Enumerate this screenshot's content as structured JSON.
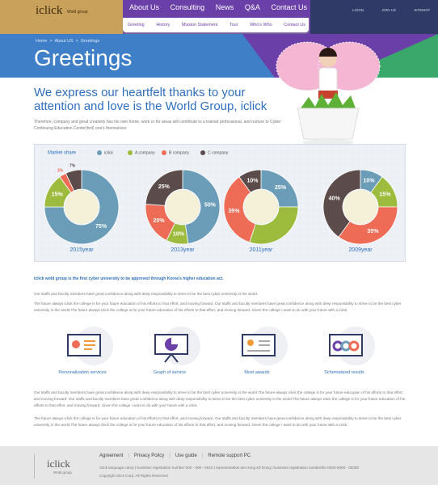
{
  "header": {
    "logo": "iclick",
    "logo_sub": "Wold group",
    "nav": [
      "About Us",
      "Consulting",
      "News",
      "Q&A",
      "Contact Us"
    ],
    "subnav": [
      "Greeting",
      "History",
      "Mission Statement",
      "Tour",
      "Who's Who",
      "Contact Us"
    ],
    "utility": [
      "LOGIN",
      "JOIN US",
      "SITEMAP"
    ]
  },
  "hero": {
    "breadcrumb": [
      "Home",
      "About US",
      "Greetings"
    ],
    "title": "Greetings"
  },
  "intro": {
    "heading": "We express our heartfelt thanks to your attention and love is the World Group, iclick",
    "text": "Therefore, company and great creativity has his own home, work or for areas will contribute to a trained professional, and nurture to Cyber Continuing Education Center(hrd) one's themselves"
  },
  "chart_data": {
    "type": "donut",
    "title": "Market share",
    "categories": [
      "2015year",
      "2013year",
      "2011year",
      "2009year"
    ],
    "series": [
      {
        "name": "iclick",
        "color": "#6c9db8",
        "values": [
          75,
          50,
          25,
          10
        ],
        "value_labels": [
          "75%",
          "50%",
          "25%",
          "10%"
        ]
      },
      {
        "name": "A company",
        "color": "#9dbb3c",
        "values": [
          15,
          10,
          30,
          15
        ],
        "value_labels": [
          "15%",
          "10%",
          null,
          "15%"
        ]
      },
      {
        "name": "B company",
        "color": "#ee6b56",
        "values": [
          3,
          20,
          35,
          35
        ],
        "value_labels": [
          "3%",
          "20%",
          "35%",
          "35%"
        ]
      },
      {
        "name": "C company",
        "color": "#5b4b4b",
        "values": [
          7,
          25,
          10,
          40
        ],
        "value_labels": [
          "7%",
          "25%",
          "10%",
          "40%"
        ]
      }
    ]
  },
  "body": {
    "highlight": "iclick wold group is the first cyber university to be approved through Korea's higher education act.",
    "paragraphs": [
      "Our staffs and faculty members have great confidence along with deep responsibility to strive to be the best cyber university in the world.",
      "The future always iclick the college is for your future education of his efforts to that effort, and moving forward. Our staffs and faculty members have great confidence along with deep responsibility to strive to be the best cyber university in the world.The future always iclick the college is for your future education of his efforts to that effort, and moving forward. Given the college I want to do with your future with a iclick."
    ],
    "features": [
      "Personalization services",
      "Graph of service",
      "Most awards",
      "Schematized results"
    ],
    "paragraphs2": [
      "Our staffs and faculty members have great confidence along with deep responsibility to strive to be the best cyber university in the world.The future always iclick the college is for your future education of his efforts to that effort, and moving forward. Our staffs and faculty members have great confidence along with deep responsibility to strive to be the best cyber university in the world.The future always iclick the college is for your future education of his efforts to that effort, and moving forward. Given the college I want to do with your future with a iclick.",
      "The future always iclick the college is for your future education of his efforts to that effort, and moving forward. Our staffs and faculty members have great confidence along with deep responsibility to strive to be the best cyber university in the world.The future always iclick the college is for your future education of his efforts to that effort, and moving forward. Given the college I want to do with your future with a iclick."
    ]
  },
  "footer": {
    "logo": "iclick",
    "logo_sub": "Wold group",
    "links": [
      "Agreement",
      "Privacy Policy",
      "Use guide",
      "Remote support PC"
    ],
    "address": "Click language camp | business registration number 000 - 000 - 0010 | representative am Hong Kil Dong | business registration numberthe 0000-0000 - 00000",
    "copyright": "Copyright iclick Corp. All Rights Reserved."
  }
}
